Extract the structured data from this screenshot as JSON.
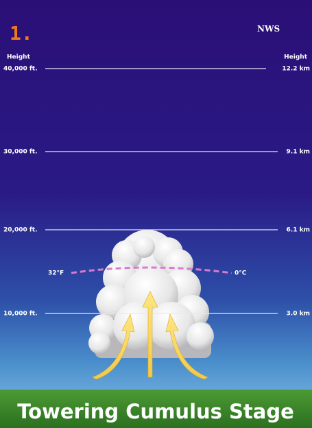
{
  "step": "1.",
  "source": "NWS",
  "left_header": "Height",
  "right_header": "Height",
  "levels": [
    {
      "left": "40,000 ft.",
      "right": "12.2 km"
    },
    {
      "left": "30,000 ft.",
      "right": "9.1 km"
    },
    {
      "left": "20,000 ft.",
      "right": "6.1 km"
    },
    {
      "left": "10,000 ft.",
      "right": "3.0 km"
    }
  ],
  "freezing": {
    "left": "32°F",
    "right": "0°C"
  },
  "title": "Towering Cumulus Stage"
}
